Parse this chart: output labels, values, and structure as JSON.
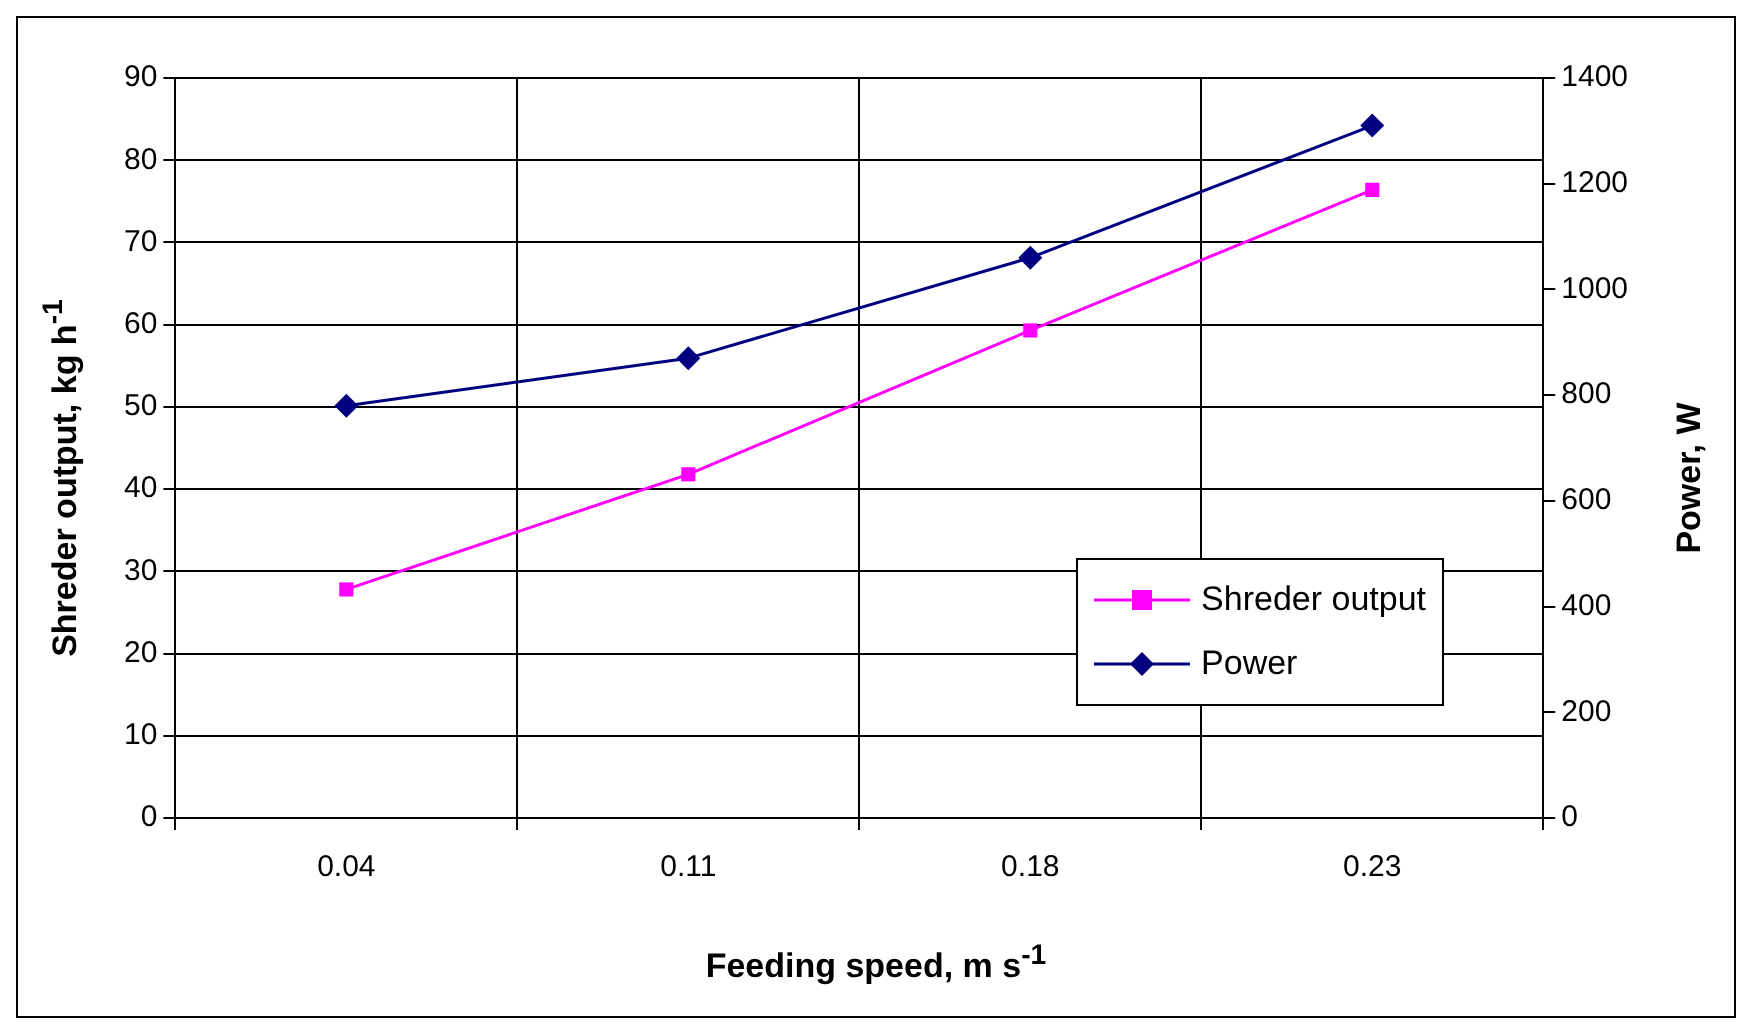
{
  "chart_data": {
    "type": "line",
    "xlabel": "Feeding speed, m s$^{-1}$",
    "ylabel": "Shreder output, kg h$^{-1}$",
    "y2label": "Power, W",
    "categories": [
      "0.04",
      "0.11",
      "0.18",
      "0.23"
    ],
    "series": [
      {
        "name": "Shreder output",
        "color": "#ff00ff",
        "marker": "square",
        "values": [
          27.8,
          41.8,
          59.3,
          76.4
        ]
      },
      {
        "name": "Power",
        "color": "#000080",
        "marker": "diamond",
        "axis": "y2",
        "values": [
          780,
          870,
          1060,
          1310
        ]
      }
    ],
    "ylim": [
      0,
      90
    ],
    "yticks": [
      0,
      10,
      20,
      30,
      40,
      50,
      60,
      70,
      80,
      90
    ],
    "y2lim": [
      0,
      1400
    ],
    "y2ticks": [
      0,
      200,
      400,
      600,
      800,
      1000,
      1200,
      1400
    ],
    "grid": true,
    "legend": "bottom right",
    "line_style": "solid"
  }
}
